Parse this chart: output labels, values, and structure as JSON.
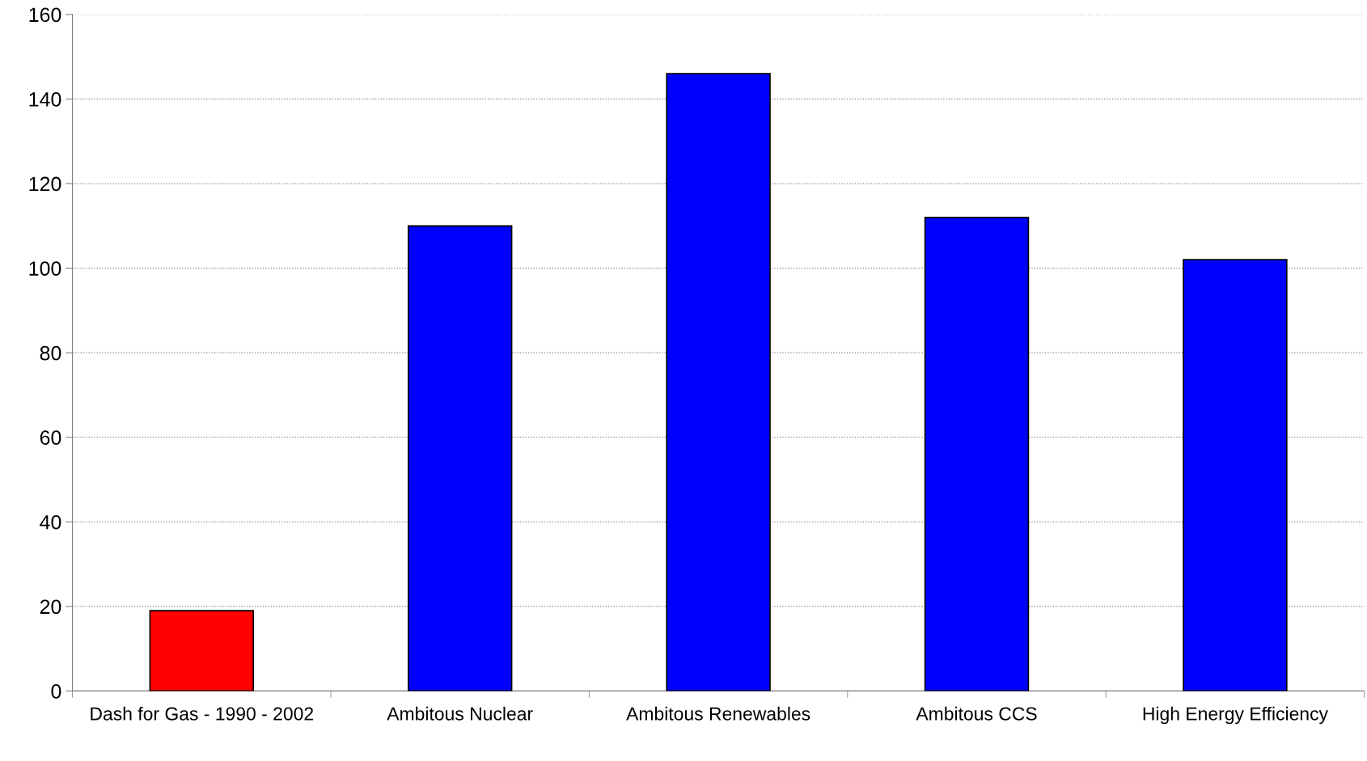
{
  "chart_data": {
    "type": "bar",
    "categories": [
      "Dash for Gas - 1990 - 2002",
      "Ambitous Nuclear",
      "Ambitous Renewables",
      "Ambitous CCS",
      "High Energy Efficiency"
    ],
    "values": [
      19,
      110,
      146,
      112,
      102
    ],
    "colors": [
      "#ff0000",
      "#0000ff",
      "#0000ff",
      "#0000ff",
      "#0000ff"
    ],
    "ylim": [
      0,
      160
    ],
    "yticks": [
      0,
      20,
      40,
      60,
      80,
      100,
      120,
      140,
      160
    ],
    "grid": "y"
  }
}
